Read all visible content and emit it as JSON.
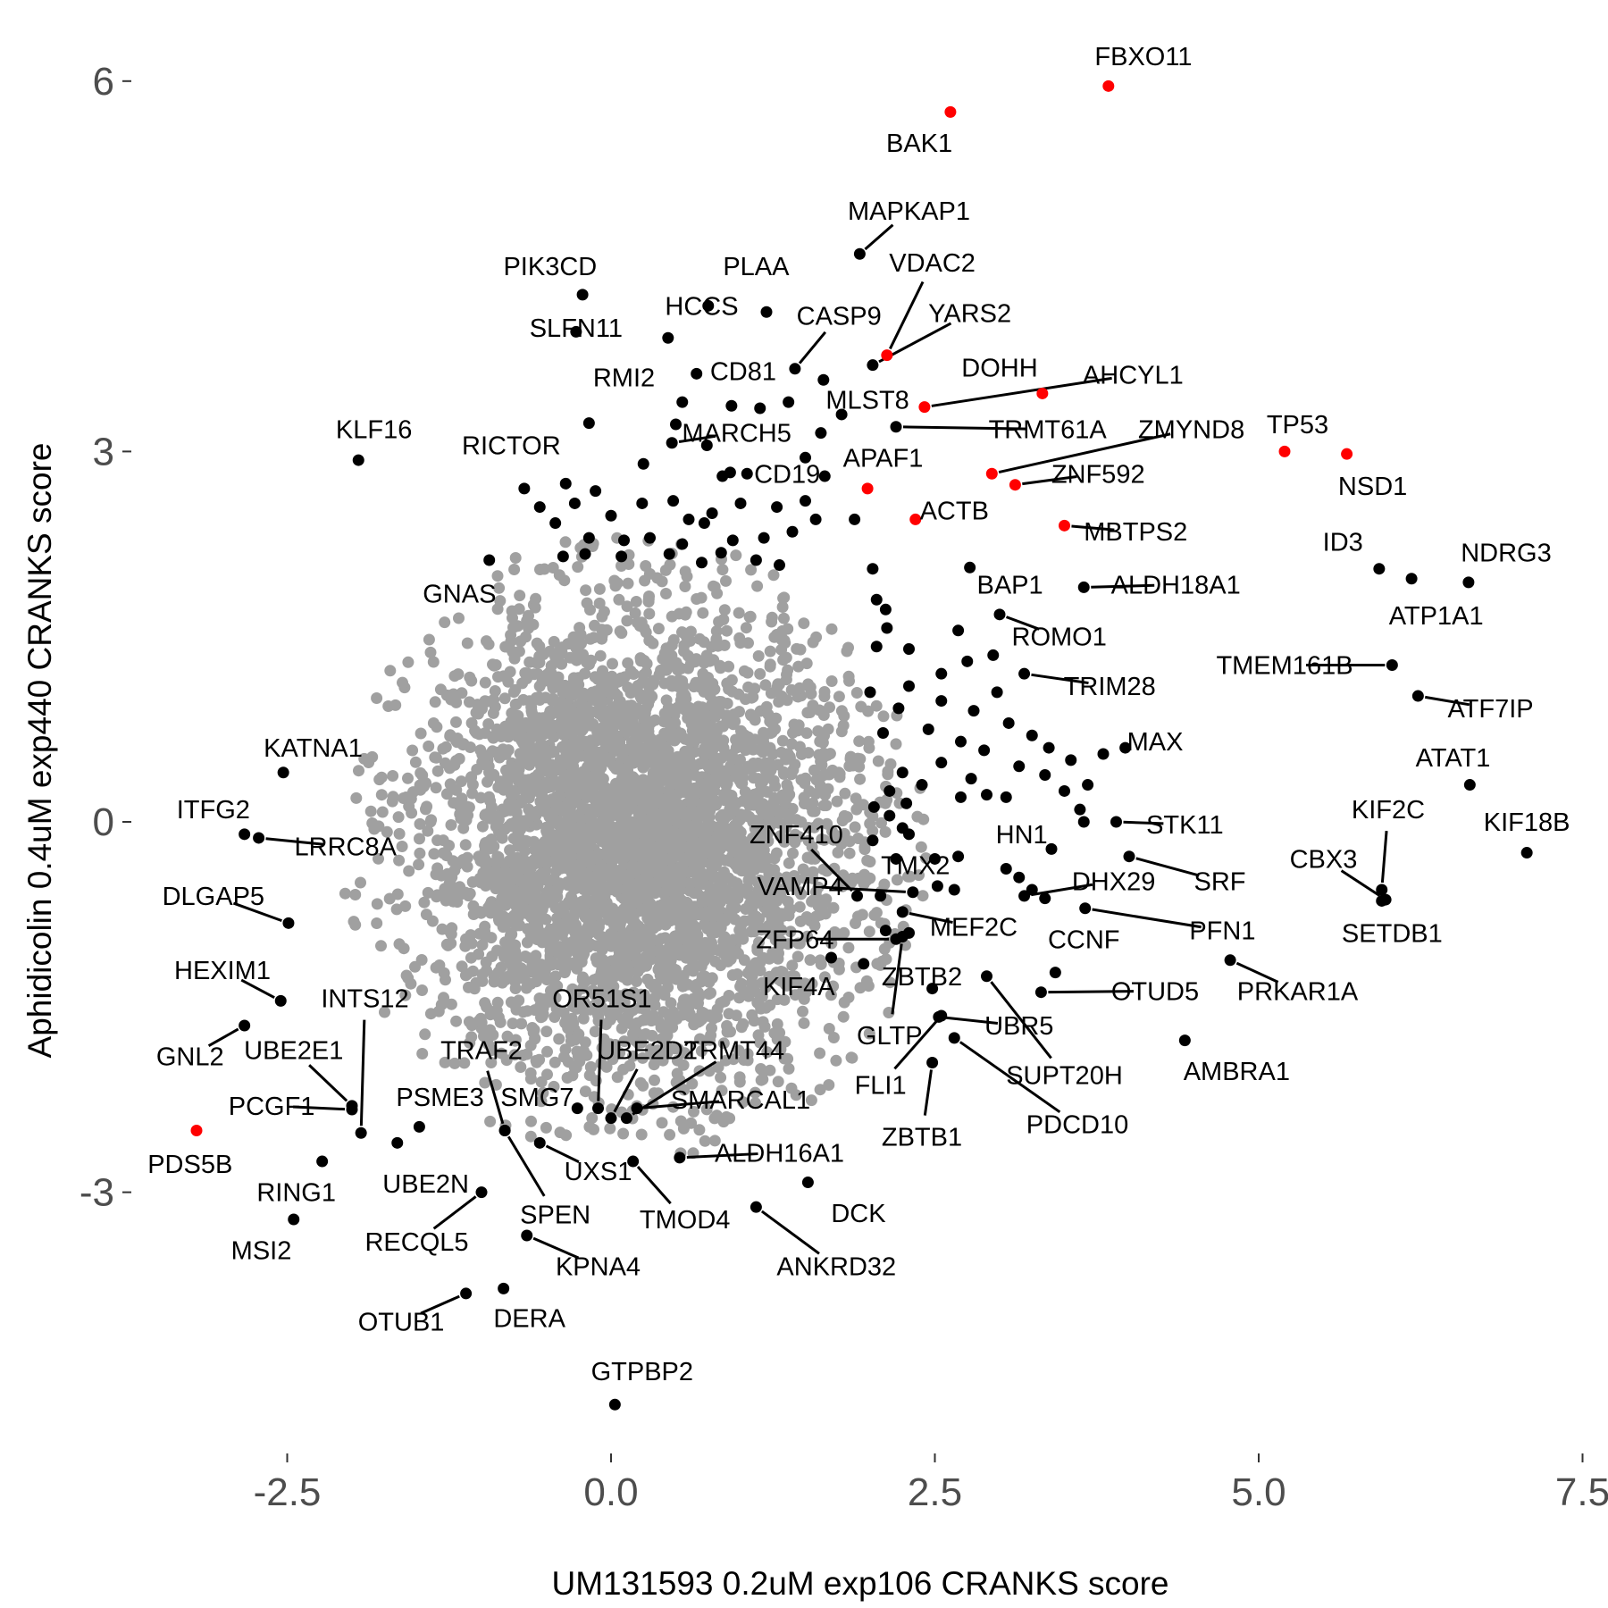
{
  "chart_data": {
    "type": "scatter",
    "xlabel": "UM131593 0.2uM exp106 CRANKS score",
    "ylabel": "Aphidicolin 0.4uM exp440 CRANKS score",
    "xlim": [
      -3.7,
      7.5
    ],
    "ylim": [
      -5.1,
      6.6
    ],
    "xticks": [
      -2.5,
      0,
      2.5,
      5,
      7.5
    ],
    "xtick_labels": [
      "-2.5",
      "0.0",
      "2.5",
      "5.0",
      "7.5"
    ],
    "yticks": [
      -3,
      0,
      3,
      6
    ],
    "ytick_labels": [
      "-3",
      "0",
      "3",
      "6"
    ],
    "grid": false,
    "legend": "none",
    "colors": {
      "background_points": "#a0a0a0",
      "labeled_points": "#000000",
      "highlight_points": "#ff0000"
    },
    "background_cloud": {
      "center": [
        0.2,
        -0.2
      ],
      "sd": [
        0.85,
        0.95
      ],
      "n": 4000,
      "seed": 7
    },
    "labeled_points": [
      {
        "label": "FBXO11",
        "x": 3.84,
        "y": 5.96,
        "color": "red",
        "lx": 4.11,
        "ly": 6.2
      },
      {
        "label": "BAK1",
        "x": 2.62,
        "y": 5.75,
        "color": "red",
        "lx": 2.38,
        "ly": 5.5
      },
      {
        "label": "MAPKAP1",
        "x": 1.92,
        "y": 4.6,
        "color": "black",
        "lx": 2.3,
        "ly": 4.95
      },
      {
        "label": "PLAA",
        "x": 1.2,
        "y": 4.13,
        "color": "black",
        "lx": 1.12,
        "ly": 4.5
      },
      {
        "label": "VDAC2",
        "x": 2.13,
        "y": 3.78,
        "color": "red",
        "lx": 2.48,
        "ly": 4.53
      },
      {
        "label": "PIK3CD",
        "x": -0.22,
        "y": 4.27,
        "color": "black",
        "lx": -0.47,
        "ly": 4.5
      },
      {
        "label": "HCCS",
        "x": 0.44,
        "y": 3.92,
        "color": "black",
        "lx": 0.7,
        "ly": 4.18
      },
      {
        "label": "YARS2",
        "x": 2.02,
        "y": 3.7,
        "color": "black",
        "lx": 2.77,
        "ly": 4.12
      },
      {
        "label": "CASP9",
        "x": 1.42,
        "y": 3.67,
        "color": "black",
        "lx": 1.76,
        "ly": 4.1
      },
      {
        "label": "SLFN11",
        "x": -0.27,
        "y": 3.97,
        "color": "black",
        "lx": -0.27,
        "ly": 4.0
      },
      {
        "label": "CD81",
        "x": 0.66,
        "y": 3.63,
        "color": "black",
        "lx": 1.02,
        "ly": 3.65
      },
      {
        "label": "RMI2",
        "x": -0.17,
        "y": 3.23,
        "color": "black",
        "lx": 0.1,
        "ly": 3.6
      },
      {
        "label": "MLST8",
        "x": 1.64,
        "y": 3.58,
        "color": "black",
        "lx": 1.98,
        "ly": 3.42
      },
      {
        "label": "DOHH",
        "x": 3.33,
        "y": 3.47,
        "color": "red",
        "lx": 3.0,
        "ly": 3.68
      },
      {
        "label": "AHCYL1",
        "x": 2.42,
        "y": 3.36,
        "color": "red",
        "lx": 4.03,
        "ly": 3.62
      },
      {
        "label": "TRMT61A",
        "x": 2.2,
        "y": 3.2,
        "color": "black",
        "lx": 3.37,
        "ly": 3.18
      },
      {
        "label": "ZMYND8",
        "x": 2.94,
        "y": 2.82,
        "color": "red",
        "lx": 4.48,
        "ly": 3.18
      },
      {
        "label": "MARCH5",
        "x": 0.47,
        "y": 3.07,
        "color": "black",
        "lx": 0.97,
        "ly": 3.15
      },
      {
        "label": "TP53",
        "x": 5.2,
        "y": 3.0,
        "color": "red",
        "lx": 5.3,
        "ly": 3.22
      },
      {
        "label": "NSD1",
        "x": 5.68,
        "y": 2.98,
        "color": "red",
        "lx": 5.88,
        "ly": 2.72
      },
      {
        "label": "KLF16",
        "x": -1.95,
        "y": 2.93,
        "color": "black",
        "lx": -1.83,
        "ly": 3.18
      },
      {
        "label": "RICTOR",
        "x": -0.67,
        "y": 2.7,
        "color": "black",
        "lx": -0.77,
        "ly": 3.05
      },
      {
        "label": "APAF1",
        "x": 1.98,
        "y": 2.7,
        "color": "red",
        "lx": 2.1,
        "ly": 2.95
      },
      {
        "label": "CD19",
        "x": 0.92,
        "y": 2.83,
        "color": "black",
        "lx": 1.36,
        "ly": 2.82
      },
      {
        "label": "ZNF592",
        "x": 3.12,
        "y": 2.73,
        "color": "red",
        "lx": 3.76,
        "ly": 2.82
      },
      {
        "label": "ACTB",
        "x": 2.35,
        "y": 2.45,
        "color": "red",
        "lx": 2.65,
        "ly": 2.52
      },
      {
        "label": "MBTPS2",
        "x": 3.5,
        "y": 2.4,
        "color": "red",
        "lx": 4.05,
        "ly": 2.35
      },
      {
        "label": "ID3",
        "x": 5.93,
        "y": 2.05,
        "color": "black",
        "lx": 5.65,
        "ly": 2.27
      },
      {
        "label": "NDRG3",
        "x": 6.62,
        "y": 1.94,
        "color": "black",
        "lx": 6.91,
        "ly": 2.18
      },
      {
        "label": "BAP1",
        "x": 2.77,
        "y": 2.06,
        "color": "black",
        "lx": 3.08,
        "ly": 1.92
      },
      {
        "label": "ALDH18A1",
        "x": 3.65,
        "y": 1.9,
        "color": "black",
        "lx": 4.36,
        "ly": 1.92
      },
      {
        "label": "ATP1A1",
        "x": 6.18,
        "y": 1.97,
        "color": "black",
        "lx": 6.37,
        "ly": 1.67
      },
      {
        "label": "GNAS",
        "x": -0.94,
        "y": 2.12,
        "color": "black",
        "lx": -1.17,
        "ly": 1.85
      },
      {
        "label": "ROMO1",
        "x": 3.0,
        "y": 1.68,
        "color": "black",
        "lx": 3.46,
        "ly": 1.5
      },
      {
        "label": "TMEM161B",
        "x": 6.03,
        "y": 1.27,
        "color": "black",
        "lx": 5.2,
        "ly": 1.27
      },
      {
        "label": "TRIM28",
        "x": 3.19,
        "y": 1.2,
        "color": "black",
        "lx": 3.85,
        "ly": 1.1
      },
      {
        "label": "ATF7IP",
        "x": 6.23,
        "y": 1.02,
        "color": "black",
        "lx": 6.79,
        "ly": 0.92
      },
      {
        "label": "MAX",
        "x": 3.97,
        "y": 0.6,
        "color": "black",
        "lx": 4.2,
        "ly": 0.65
      },
      {
        "label": "ATAT1",
        "x": 6.63,
        "y": 0.3,
        "color": "black",
        "lx": 6.5,
        "ly": 0.52
      },
      {
        "label": "KATNA1",
        "x": -2.53,
        "y": 0.4,
        "color": "black",
        "lx": -2.3,
        "ly": 0.6
      },
      {
        "label": "ITFG2",
        "x": -2.83,
        "y": -0.1,
        "color": "black",
        "lx": -3.07,
        "ly": 0.1
      },
      {
        "label": "KIF2C",
        "x": 5.95,
        "y": -0.55,
        "color": "black",
        "lx": 6.0,
        "ly": 0.1
      },
      {
        "label": "KIF18B",
        "x": 7.07,
        "y": -0.25,
        "color": "black",
        "lx": 7.07,
        "ly": 0.0
      },
      {
        "label": "STK11",
        "x": 3.9,
        "y": 0.0,
        "color": "black",
        "lx": 4.43,
        "ly": -0.02
      },
      {
        "label": "ZNF410",
        "x": 1.9,
        "y": -0.6,
        "color": "black",
        "lx": 1.43,
        "ly": -0.1
      },
      {
        "label": "HN1",
        "x": 3.15,
        "y": -0.45,
        "color": "black",
        "lx": 3.17,
        "ly": -0.1
      },
      {
        "label": "LRRC8A",
        "x": -2.72,
        "y": -0.13,
        "color": "black",
        "lx": -2.05,
        "ly": -0.2
      },
      {
        "label": "CBX3",
        "x": 5.98,
        "y": -0.63,
        "color": "black",
        "lx": 5.5,
        "ly": -0.3
      },
      {
        "label": "TMX2",
        "x": 2.5,
        "y": -0.3,
        "color": "black",
        "lx": 2.35,
        "ly": -0.35
      },
      {
        "label": "SRF",
        "x": 4.0,
        "y": -0.28,
        "color": "black",
        "lx": 4.7,
        "ly": -0.48
      },
      {
        "label": "DHX29",
        "x": 3.19,
        "y": -0.6,
        "color": "black",
        "lx": 3.88,
        "ly": -0.48
      },
      {
        "label": "VAMP4",
        "x": 2.33,
        "y": -0.57,
        "color": "black",
        "lx": 1.46,
        "ly": -0.52
      },
      {
        "label": "DLGAP5",
        "x": -2.49,
        "y": -0.82,
        "color": "black",
        "lx": -3.07,
        "ly": -0.6
      },
      {
        "label": "MEF2C",
        "x": 2.25,
        "y": -0.73,
        "color": "black",
        "lx": 2.8,
        "ly": -0.85
      },
      {
        "label": "PFN1",
        "x": 3.66,
        "y": -0.7,
        "color": "black",
        "lx": 4.72,
        "ly": -0.88
      },
      {
        "label": "SETDB1",
        "x": 5.95,
        "y": -0.64,
        "color": "black",
        "lx": 6.03,
        "ly": -0.9
      },
      {
        "label": "CCNF",
        "x": 3.43,
        "y": -1.22,
        "color": "black",
        "lx": 3.65,
        "ly": -0.95
      },
      {
        "label": "ZFP64",
        "x": 2.2,
        "y": -0.95,
        "color": "black",
        "lx": 1.42,
        "ly": -0.95
      },
      {
        "label": "HEXIM1",
        "x": -2.55,
        "y": -1.45,
        "color": "black",
        "lx": -3.0,
        "ly": -1.2
      },
      {
        "label": "ZBTB2",
        "x": 2.48,
        "y": -1.35,
        "color": "black",
        "lx": 2.4,
        "ly": -1.25
      },
      {
        "label": "KIF4A",
        "x": 1.7,
        "y": -1.1,
        "color": "black",
        "lx": 1.45,
        "ly": -1.33
      },
      {
        "label": "OTUD5",
        "x": 3.32,
        "y": -1.38,
        "color": "black",
        "lx": 4.2,
        "ly": -1.37
      },
      {
        "label": "PRKAR1A",
        "x": 4.78,
        "y": -1.12,
        "color": "black",
        "lx": 5.3,
        "ly": -1.37
      },
      {
        "label": "INTS12",
        "x": -1.93,
        "y": -2.52,
        "color": "black",
        "lx": -1.9,
        "ly": -1.43
      },
      {
        "label": "OR51S1",
        "x": -0.1,
        "y": -2.32,
        "color": "black",
        "lx": -0.07,
        "ly": -1.43
      },
      {
        "label": "GLTP",
        "x": 2.25,
        "y": -0.93,
        "color": "black",
        "lx": 2.15,
        "ly": -1.73
      },
      {
        "label": "UBR5",
        "x": 2.53,
        "y": -1.58,
        "color": "black",
        "lx": 3.15,
        "ly": -1.65
      },
      {
        "label": "GNL2",
        "x": -2.83,
        "y": -1.65,
        "color": "black",
        "lx": -3.25,
        "ly": -1.9
      },
      {
        "label": "UBE2E1",
        "x": -2.0,
        "y": -2.3,
        "color": "black",
        "lx": -2.45,
        "ly": -1.85
      },
      {
        "label": "TRAF2",
        "x": -0.82,
        "y": -2.5,
        "color": "black",
        "lx": -1.0,
        "ly": -1.85
      },
      {
        "label": "UBE2D2",
        "x": 0.0,
        "y": -2.4,
        "color": "black",
        "lx": 0.28,
        "ly": -1.85
      },
      {
        "label": "TRMT44",
        "x": 0.12,
        "y": -2.4,
        "color": "black",
        "lx": 0.95,
        "ly": -1.85
      },
      {
        "label": "AMBRA1",
        "x": 4.43,
        "y": -1.77,
        "color": "black",
        "lx": 4.83,
        "ly": -2.02
      },
      {
        "label": "SUPT20H",
        "x": 2.9,
        "y": -1.25,
        "color": "black",
        "lx": 3.5,
        "ly": -2.05
      },
      {
        "label": "FLI1",
        "x": 2.55,
        "y": -1.57,
        "color": "black",
        "lx": 2.08,
        "ly": -2.13
      },
      {
        "label": "PSME3",
        "x": -1.48,
        "y": -2.47,
        "color": "black",
        "lx": -1.32,
        "ly": -2.23
      },
      {
        "label": "SMG7",
        "x": -0.26,
        "y": -2.32,
        "color": "black",
        "lx": -0.57,
        "ly": -2.23
      },
      {
        "label": "SMARCAL1",
        "x": 0.2,
        "y": -2.32,
        "color": "black",
        "lx": 1.0,
        "ly": -2.25
      },
      {
        "label": "PCGF1",
        "x": -2.0,
        "y": -2.33,
        "color": "black",
        "lx": -2.62,
        "ly": -2.3
      },
      {
        "label": "ZBTB1",
        "x": 2.48,
        "y": -1.95,
        "color": "black",
        "lx": 2.4,
        "ly": -2.55
      },
      {
        "label": "PDCD10",
        "x": 2.65,
        "y": -1.75,
        "color": "black",
        "lx": 3.6,
        "ly": -2.45
      },
      {
        "label": "PDS5B",
        "x": -3.2,
        "y": -2.5,
        "color": "red",
        "lx": -3.25,
        "ly": -2.77
      },
      {
        "label": "ALDH16A1",
        "x": 0.53,
        "y": -2.72,
        "color": "black",
        "lx": 1.3,
        "ly": -2.68
      },
      {
        "label": "UXS1",
        "x": -0.55,
        "y": -2.6,
        "color": "black",
        "lx": -0.1,
        "ly": -2.83
      },
      {
        "label": "RING1",
        "x": -2.23,
        "y": -2.75,
        "color": "black",
        "lx": -2.43,
        "ly": -3.0
      },
      {
        "label": "UBE2N",
        "x": -1.65,
        "y": -2.6,
        "color": "black",
        "lx": -1.43,
        "ly": -2.93
      },
      {
        "label": "SPEN",
        "x": -0.82,
        "y": -2.5,
        "color": "black",
        "lx": -0.43,
        "ly": -3.18
      },
      {
        "label": "TMOD4",
        "x": 0.17,
        "y": -2.75,
        "color": "black",
        "lx": 0.57,
        "ly": -3.22
      },
      {
        "label": "DCK",
        "x": 1.52,
        "y": -2.92,
        "color": "black",
        "lx": 1.91,
        "ly": -3.17
      },
      {
        "label": "MSI2",
        "x": -2.45,
        "y": -3.22,
        "color": "black",
        "lx": -2.7,
        "ly": -3.47
      },
      {
        "label": "RECQL5",
        "x": -1.0,
        "y": -3.0,
        "color": "black",
        "lx": -1.5,
        "ly": -3.4
      },
      {
        "label": "ANKRD32",
        "x": 1.12,
        "y": -3.12,
        "color": "black",
        "lx": 1.74,
        "ly": -3.6
      },
      {
        "label": "KPNA4",
        "x": -0.65,
        "y": -3.35,
        "color": "black",
        "lx": -0.1,
        "ly": -3.6
      },
      {
        "label": "OTUB1",
        "x": -1.12,
        "y": -3.82,
        "color": "black",
        "lx": -1.62,
        "ly": -4.05
      },
      {
        "label": "DERA",
        "x": -0.83,
        "y": -3.78,
        "color": "black",
        "lx": -0.63,
        "ly": -4.02
      },
      {
        "label": "GTPBP2",
        "x": 0.03,
        "y": -4.72,
        "color": "black",
        "lx": 0.24,
        "ly": -4.45
      }
    ],
    "unlabeled_points": [
      [
        0.75,
        4.18
      ],
      [
        0.55,
        3.4
      ],
      [
        0.5,
        3.22
      ],
      [
        0.93,
        3.37
      ],
      [
        1.15,
        3.35
      ],
      [
        1.37,
        3.4
      ],
      [
        1.62,
        3.15
      ],
      [
        1.78,
        3.3
      ],
      [
        0.25,
        2.9
      ],
      [
        0.74,
        3.05
      ],
      [
        0.86,
        2.8
      ],
      [
        1.05,
        2.82
      ],
      [
        1.5,
        2.95
      ],
      [
        1.65,
        2.8
      ],
      [
        -0.12,
        2.68
      ],
      [
        -0.35,
        2.74
      ],
      [
        -0.55,
        2.55
      ],
      [
        -0.28,
        2.58
      ],
      [
        0.0,
        2.48
      ],
      [
        0.24,
        2.58
      ],
      [
        0.48,
        2.6
      ],
      [
        0.6,
        2.45
      ],
      [
        0.78,
        2.5
      ],
      [
        1.0,
        2.58
      ],
      [
        1.28,
        2.55
      ],
      [
        1.5,
        2.6
      ],
      [
        1.58,
        2.45
      ],
      [
        -0.43,
        2.42
      ],
      [
        -0.17,
        2.3
      ],
      [
        0.1,
        2.28
      ],
      [
        0.3,
        2.3
      ],
      [
        0.55,
        2.25
      ],
      [
        0.72,
        2.42
      ],
      [
        0.94,
        2.28
      ],
      [
        1.18,
        2.3
      ],
      [
        1.4,
        2.35
      ],
      [
        1.88,
        2.45
      ],
      [
        -0.37,
        2.15
      ],
      [
        -0.2,
        2.17
      ],
      [
        0.08,
        2.15
      ],
      [
        0.45,
        2.17
      ],
      [
        0.7,
        2.1
      ],
      [
        0.85,
        2.18
      ],
      [
        1.12,
        2.12
      ],
      [
        1.3,
        2.08
      ],
      [
        2.02,
        2.05
      ],
      [
        2.05,
        1.8
      ],
      [
        2.12,
        1.72
      ],
      [
        2.13,
        1.57
      ],
      [
        2.05,
        1.42
      ],
      [
        2.3,
        1.4
      ],
      [
        2.68,
        1.55
      ],
      [
        2.95,
        1.35
      ],
      [
        2.75,
        1.3
      ],
      [
        2.55,
        1.2
      ],
      [
        2.3,
        1.1
      ],
      [
        2.0,
        1.05
      ],
      [
        2.22,
        0.92
      ],
      [
        2.55,
        0.98
      ],
      [
        2.8,
        0.9
      ],
      [
        2.98,
        1.05
      ],
      [
        3.07,
        0.8
      ],
      [
        3.25,
        0.7
      ],
      [
        3.38,
        0.6
      ],
      [
        3.55,
        0.5
      ],
      [
        2.1,
        0.72
      ],
      [
        2.45,
        0.75
      ],
      [
        2.7,
        0.65
      ],
      [
        2.88,
        0.58
      ],
      [
        3.15,
        0.45
      ],
      [
        3.35,
        0.38
      ],
      [
        2.25,
        0.4
      ],
      [
        2.55,
        0.48
      ],
      [
        2.78,
        0.35
      ],
      [
        2.9,
        0.22
      ],
      [
        3.05,
        0.2
      ],
      [
        2.7,
        0.2
      ],
      [
        2.4,
        0.3
      ],
      [
        2.15,
        0.25
      ],
      [
        2.28,
        0.15
      ],
      [
        2.15,
        0.05
      ],
      [
        2.03,
        0.12
      ],
      [
        2.25,
        -0.05
      ],
      [
        2.02,
        -0.15
      ],
      [
        2.2,
        -0.3
      ],
      [
        2.3,
        -0.1
      ],
      [
        3.68,
        0.3
      ],
      [
        3.8,
        0.55
      ],
      [
        3.62,
        0.1
      ],
      [
        3.5,
        0.25
      ],
      [
        3.65,
        0.0
      ],
      [
        3.4,
        -0.22
      ],
      [
        3.25,
        -0.55
      ],
      [
        3.35,
        -0.62
      ],
      [
        2.08,
        -0.6
      ],
      [
        2.12,
        -0.88
      ],
      [
        2.3,
        -0.9
      ],
      [
        2.52,
        -0.52
      ],
      [
        2.65,
        -0.55
      ],
      [
        2.68,
        -0.28
      ],
      [
        3.05,
        -0.38
      ],
      [
        1.95,
        -1.15
      ]
    ]
  }
}
